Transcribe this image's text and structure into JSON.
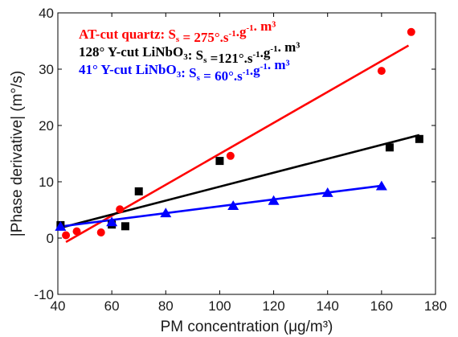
{
  "chart_data": {
    "type": "scatter",
    "xlabel": "PM concentration (μg/m³)",
    "ylabel": "|Phase derivative| (m°/s)",
    "xlim": [
      40,
      180
    ],
    "ylim": [
      -10,
      40
    ],
    "xticks": [
      "40",
      "60",
      "80",
      "100",
      "120",
      "140",
      "160",
      "180"
    ],
    "yticks": [
      "-10",
      "0",
      "10",
      "20",
      "30",
      "40"
    ],
    "grid": false,
    "legend_position": "top-left",
    "series": [
      {
        "name": "AT-cut quartz: Sₛ = 275°.s⁻¹.g⁻¹. m³",
        "color": "#ff0000",
        "marker": "circle",
        "points": [
          {
            "x": 43,
            "y": 0.5
          },
          {
            "x": 47,
            "y": 1.2
          },
          {
            "x": 56,
            "y": 1.0
          },
          {
            "x": 63,
            "y": 5.1
          },
          {
            "x": 104,
            "y": 14.6
          },
          {
            "x": 160,
            "y": 29.7
          },
          {
            "x": 171,
            "y": 36.6
          }
        ],
        "fit": {
          "x": [
            43,
            170
          ],
          "y": [
            -0.7,
            34.2
          ]
        }
      },
      {
        "name": "128° Y-cut LiNbO₃: Sₛ =121°.s⁻¹.g⁻¹. m³",
        "color": "#000000",
        "marker": "square",
        "points": [
          {
            "x": 41,
            "y": 2.3
          },
          {
            "x": 60,
            "y": 2.4
          },
          {
            "x": 65,
            "y": 2.1
          },
          {
            "x": 70,
            "y": 8.3
          },
          {
            "x": 100,
            "y": 13.7
          },
          {
            "x": 163,
            "y": 16.1
          },
          {
            "x": 174,
            "y": 17.6
          }
        ],
        "fit": {
          "x": [
            40,
            174
          ],
          "y": [
            1.7,
            18.3
          ]
        }
      },
      {
        "name": "41° Y-cut LiNbO₃: Sₛ = 60°.s⁻¹.g⁻¹. m³",
        "color": "#0000ff",
        "marker": "triangle",
        "points": [
          {
            "x": 41,
            "y": 2.0
          },
          {
            "x": 60,
            "y": 2.8
          },
          {
            "x": 80,
            "y": 4.4
          },
          {
            "x": 105,
            "y": 5.7
          },
          {
            "x": 120,
            "y": 6.6
          },
          {
            "x": 140,
            "y": 8.0
          },
          {
            "x": 160,
            "y": 9.2
          }
        ],
        "fit": {
          "x": [
            40,
            160
          ],
          "y": [
            2.0,
            9.3
          ]
        }
      }
    ]
  }
}
